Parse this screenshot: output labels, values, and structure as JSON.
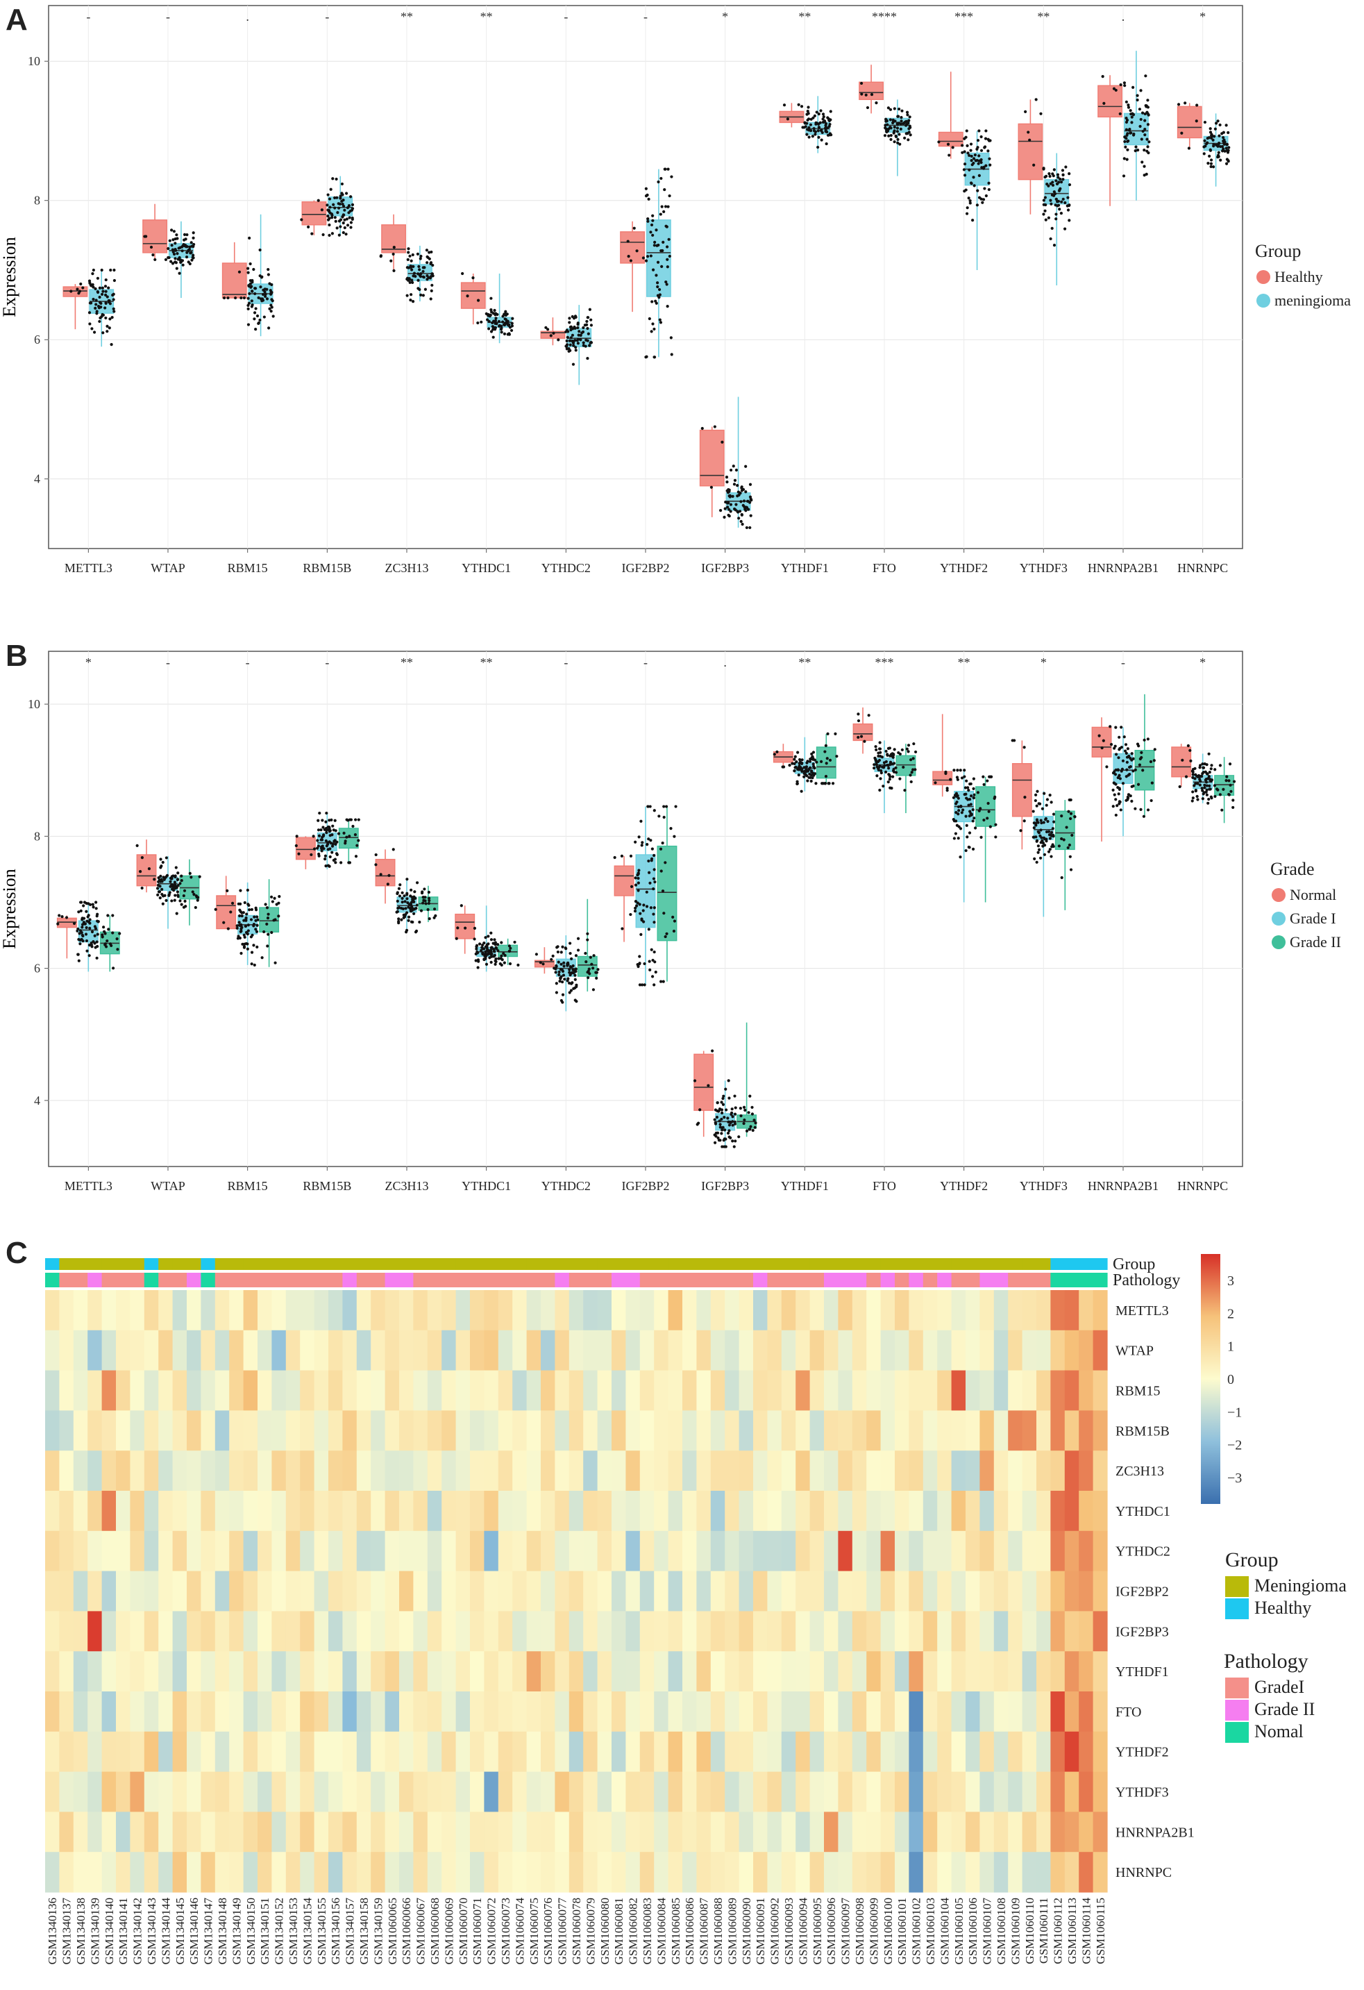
{
  "panels": {
    "a": {
      "letter": "A"
    },
    "b": {
      "letter": "B"
    },
    "c": {
      "letter": "C"
    }
  },
  "genes": [
    "METTL3",
    "WTAP",
    "RBM15",
    "RBM15B",
    "ZC3H13",
    "YTHDC1",
    "YTHDC2",
    "IGF2BP2",
    "IGF2BP3",
    "YTHDF1",
    "FTO",
    "YTHDF2",
    "YTHDF3",
    "HNRNPA2B1",
    "HNRNPC"
  ],
  "chart_data": [
    {
      "type": "box",
      "panel": "A",
      "ylabel": "Expression",
      "ylim": [
        3.0,
        10.8
      ],
      "yticks": [
        4,
        6,
        8,
        10
      ],
      "legend_title": "Group",
      "legend_position": "right",
      "series": [
        {
          "name": "Healthy",
          "color": "#f07c73"
        },
        {
          "name": "meningioma",
          "color": "#6fcfe0"
        }
      ],
      "significance": [
        "-",
        "-",
        ".",
        "-",
        "**",
        "**",
        "-",
        "-",
        "*",
        "**",
        "****",
        "***",
        "**",
        ".",
        "*"
      ],
      "boxes": {
        "Healthy": [
          {
            "q1": 6.62,
            "median": 6.7,
            "q3": 6.76,
            "lo": 6.15,
            "hi": 6.8
          },
          {
            "q1": 7.25,
            "median": 7.38,
            "q3": 7.72,
            "lo": 7.15,
            "hi": 7.95
          },
          {
            "q1": 6.6,
            "median": 6.65,
            "q3": 7.1,
            "lo": 6.6,
            "hi": 7.4
          },
          {
            "q1": 7.65,
            "median": 7.8,
            "q3": 7.98,
            "lo": 7.5,
            "hi": 8.0
          },
          {
            "q1": 7.25,
            "median": 7.3,
            "q3": 7.65,
            "lo": 6.98,
            "hi": 7.8
          },
          {
            "q1": 6.45,
            "median": 6.7,
            "q3": 6.82,
            "lo": 6.22,
            "hi": 6.95
          },
          {
            "q1": 6.02,
            "median": 6.1,
            "q3": 6.12,
            "lo": 5.92,
            "hi": 6.32
          },
          {
            "q1": 7.1,
            "median": 7.4,
            "q3": 7.55,
            "lo": 6.4,
            "hi": 7.7
          },
          {
            "q1": 3.9,
            "median": 4.05,
            "q3": 4.7,
            "lo": 3.45,
            "hi": 4.75
          },
          {
            "q1": 9.12,
            "median": 9.2,
            "q3": 9.28,
            "lo": 9.05,
            "hi": 9.4
          },
          {
            "q1": 9.45,
            "median": 9.55,
            "q3": 9.7,
            "lo": 9.25,
            "hi": 9.95
          },
          {
            "q1": 8.78,
            "median": 8.85,
            "q3": 8.98,
            "lo": 8.6,
            "hi": 9.85
          },
          {
            "q1": 8.3,
            "median": 8.85,
            "q3": 9.1,
            "lo": 7.8,
            "hi": 9.45
          },
          {
            "q1": 9.2,
            "median": 9.35,
            "q3": 9.65,
            "lo": 7.92,
            "hi": 9.8
          },
          {
            "q1": 8.9,
            "median": 9.05,
            "q3": 9.35,
            "lo": 8.75,
            "hi": 9.4
          }
        ],
        "meningioma": [
          {
            "q1": 6.38,
            "median": 6.55,
            "q3": 6.72,
            "lo": 5.9,
            "hi": 7.0
          },
          {
            "q1": 7.18,
            "median": 7.28,
            "q3": 7.38,
            "lo": 6.6,
            "hi": 7.7
          },
          {
            "q1": 6.52,
            "median": 6.66,
            "q3": 6.8,
            "lo": 6.05,
            "hi": 7.8
          },
          {
            "q1": 7.78,
            "median": 7.9,
            "q3": 8.05,
            "lo": 7.5,
            "hi": 8.35
          },
          {
            "q1": 6.85,
            "median": 6.95,
            "q3": 7.08,
            "lo": 6.55,
            "hi": 7.35
          },
          {
            "q1": 6.18,
            "median": 6.25,
            "q3": 6.32,
            "lo": 5.95,
            "hi": 6.95
          },
          {
            "q1": 5.9,
            "median": 6.02,
            "q3": 6.16,
            "lo": 5.35,
            "hi": 6.5
          },
          {
            "q1": 6.62,
            "median": 7.25,
            "q3": 7.72,
            "lo": 5.75,
            "hi": 8.45
          },
          {
            "q1": 3.55,
            "median": 3.68,
            "q3": 3.8,
            "lo": 3.3,
            "hi": 5.18
          },
          {
            "q1": 8.95,
            "median": 9.03,
            "q3": 9.12,
            "lo": 8.68,
            "hi": 9.5
          },
          {
            "q1": 8.98,
            "median": 9.08,
            "q3": 9.18,
            "lo": 8.35,
            "hi": 9.45
          },
          {
            "q1": 8.22,
            "median": 8.45,
            "q3": 8.68,
            "lo": 7.0,
            "hi": 9.0
          },
          {
            "q1": 7.95,
            "median": 8.1,
            "q3": 8.3,
            "lo": 6.78,
            "hi": 8.68
          },
          {
            "q1": 8.8,
            "median": 9.0,
            "q3": 9.25,
            "lo": 8.0,
            "hi": 10.15
          },
          {
            "q1": 8.72,
            "median": 8.82,
            "q3": 8.92,
            "lo": 8.2,
            "hi": 9.25
          }
        ]
      }
    },
    {
      "type": "box",
      "panel": "B",
      "ylabel": "Expression",
      "ylim": [
        3.0,
        10.8
      ],
      "yticks": [
        4,
        6,
        8,
        10
      ],
      "legend_title": "Grade",
      "legend_position": "right",
      "series": [
        {
          "name": "Normal",
          "color": "#f07c73"
        },
        {
          "name": "Grade I",
          "color": "#6fcfe0"
        },
        {
          "name": "Grade II",
          "color": "#3fbf9a"
        }
      ],
      "significance": [
        "*",
        "-",
        "-",
        "-",
        "**",
        "**",
        "-",
        "-",
        ".",
        "**",
        "***",
        "**",
        "*",
        "-",
        "*"
      ],
      "boxes": {
        "Normal": [
          {
            "q1": 6.62,
            "median": 6.7,
            "q3": 6.76,
            "lo": 6.15,
            "hi": 6.8
          },
          {
            "q1": 7.25,
            "median": 7.4,
            "q3": 7.72,
            "lo": 7.15,
            "hi": 7.95
          },
          {
            "q1": 6.6,
            "median": 6.95,
            "q3": 7.1,
            "lo": 6.6,
            "hi": 7.4
          },
          {
            "q1": 7.65,
            "median": 7.8,
            "q3": 7.98,
            "lo": 7.5,
            "hi": 8.0
          },
          {
            "q1": 7.25,
            "median": 7.4,
            "q3": 7.65,
            "lo": 6.98,
            "hi": 7.8
          },
          {
            "q1": 6.45,
            "median": 6.7,
            "q3": 6.82,
            "lo": 6.22,
            "hi": 6.95
          },
          {
            "q1": 6.02,
            "median": 6.1,
            "q3": 6.12,
            "lo": 5.92,
            "hi": 6.32
          },
          {
            "q1": 7.1,
            "median": 7.4,
            "q3": 7.55,
            "lo": 6.4,
            "hi": 7.7
          },
          {
            "q1": 3.85,
            "median": 4.2,
            "q3": 4.7,
            "lo": 3.45,
            "hi": 4.75
          },
          {
            "q1": 9.12,
            "median": 9.2,
            "q3": 9.28,
            "lo": 9.05,
            "hi": 9.4
          },
          {
            "q1": 9.45,
            "median": 9.55,
            "q3": 9.7,
            "lo": 9.25,
            "hi": 9.95
          },
          {
            "q1": 8.78,
            "median": 8.85,
            "q3": 8.98,
            "lo": 8.6,
            "hi": 9.85
          },
          {
            "q1": 8.3,
            "median": 8.85,
            "q3": 9.1,
            "lo": 7.8,
            "hi": 9.45
          },
          {
            "q1": 9.2,
            "median": 9.35,
            "q3": 9.65,
            "lo": 7.92,
            "hi": 9.8
          },
          {
            "q1": 8.9,
            "median": 9.05,
            "q3": 9.35,
            "lo": 8.75,
            "hi": 9.4
          }
        ],
        "Grade I": [
          {
            "q1": 6.4,
            "median": 6.58,
            "q3": 6.72,
            "lo": 5.95,
            "hi": 7.0
          },
          {
            "q1": 7.18,
            "median": 7.28,
            "q3": 7.38,
            "lo": 6.6,
            "hi": 7.7
          },
          {
            "q1": 6.52,
            "median": 6.66,
            "q3": 6.8,
            "lo": 6.05,
            "hi": 7.3
          },
          {
            "q1": 7.78,
            "median": 7.9,
            "q3": 8.05,
            "lo": 7.5,
            "hi": 8.35
          },
          {
            "q1": 6.85,
            "median": 6.95,
            "q3": 7.08,
            "lo": 6.55,
            "hi": 7.35
          },
          {
            "q1": 6.18,
            "median": 6.25,
            "q3": 6.32,
            "lo": 5.95,
            "hi": 6.95
          },
          {
            "q1": 5.88,
            "median": 6.0,
            "q3": 6.14,
            "lo": 5.35,
            "hi": 6.5
          },
          {
            "q1": 6.62,
            "median": 7.2,
            "q3": 7.72,
            "lo": 5.75,
            "hi": 8.45
          },
          {
            "q1": 3.55,
            "median": 3.68,
            "q3": 3.8,
            "lo": 3.3,
            "hi": 4.3
          },
          {
            "q1": 8.95,
            "median": 9.03,
            "q3": 9.12,
            "lo": 8.68,
            "hi": 9.5
          },
          {
            "q1": 8.98,
            "median": 9.08,
            "q3": 9.18,
            "lo": 8.35,
            "hi": 9.45
          },
          {
            "q1": 8.22,
            "median": 8.45,
            "q3": 8.68,
            "lo": 7.0,
            "hi": 9.0
          },
          {
            "q1": 7.95,
            "median": 8.1,
            "q3": 8.3,
            "lo": 6.78,
            "hi": 8.68
          },
          {
            "q1": 8.8,
            "median": 9.0,
            "q3": 9.25,
            "lo": 8.0,
            "hi": 9.65
          },
          {
            "q1": 8.72,
            "median": 8.82,
            "q3": 8.92,
            "lo": 8.5,
            "hi": 9.25
          }
        ],
        "Grade II": [
          {
            "q1": 6.22,
            "median": 6.38,
            "q3": 6.55,
            "lo": 5.95,
            "hi": 6.8
          },
          {
            "q1": 7.05,
            "median": 7.22,
            "q3": 7.4,
            "lo": 6.65,
            "hi": 7.65
          },
          {
            "q1": 6.55,
            "median": 6.72,
            "q3": 6.92,
            "lo": 6.02,
            "hi": 7.35
          },
          {
            "q1": 7.82,
            "median": 7.98,
            "q3": 8.12,
            "lo": 7.6,
            "hi": 8.25
          },
          {
            "q1": 6.88,
            "median": 6.98,
            "q3": 7.08,
            "lo": 6.7,
            "hi": 7.25
          },
          {
            "q1": 6.18,
            "median": 6.25,
            "q3": 6.35,
            "lo": 6.05,
            "hi": 6.45
          },
          {
            "q1": 5.88,
            "median": 6.05,
            "q3": 6.18,
            "lo": 5.65,
            "hi": 7.05
          },
          {
            "q1": 6.42,
            "median": 7.15,
            "q3": 7.85,
            "lo": 5.8,
            "hi": 8.45
          },
          {
            "q1": 3.58,
            "median": 3.68,
            "q3": 3.78,
            "lo": 3.45,
            "hi": 5.18
          },
          {
            "q1": 8.88,
            "median": 9.05,
            "q3": 9.35,
            "lo": 8.8,
            "hi": 9.55
          },
          {
            "q1": 8.92,
            "median": 9.08,
            "q3": 9.22,
            "lo": 8.35,
            "hi": 9.4
          },
          {
            "q1": 8.15,
            "median": 8.4,
            "q3": 8.75,
            "lo": 7.0,
            "hi": 8.9
          },
          {
            "q1": 7.8,
            "median": 8.05,
            "q3": 8.38,
            "lo": 6.88,
            "hi": 8.55
          },
          {
            "q1": 8.7,
            "median": 9.05,
            "q3": 9.3,
            "lo": 8.3,
            "hi": 10.15
          },
          {
            "q1": 8.62,
            "median": 8.78,
            "q3": 8.92,
            "lo": 8.2,
            "hi": 9.2
          }
        ]
      }
    },
    {
      "type": "heatmap",
      "panel": "C",
      "rows": [
        "METTL3",
        "WTAP",
        "RBM15",
        "RBM15B",
        "ZC3H13",
        "YTHDC1",
        "YTHDC2",
        "IGF2BP2",
        "IGF2BP3",
        "YTHDF1",
        "FTO",
        "YTHDF2",
        "YTHDF3",
        "HNRNPA2B1",
        "HNRNPC"
      ],
      "columns": [
        "GSM1340136",
        "GSM1340137",
        "GSM1340138",
        "GSM1340139",
        "GSM1340140",
        "GSM1340141",
        "GSM1340142",
        "GSM1340143",
        "GSM1340144",
        "GSM1340145",
        "GSM1340146",
        "GSM1340147",
        "GSM1340148",
        "GSM1340149",
        "GSM1340150",
        "GSM1340151",
        "GSM1340152",
        "GSM1340153",
        "GSM1340154",
        "GSM1340155",
        "GSM1340156",
        "GSM1340157",
        "GSM1340158",
        "GSM1340159",
        "GSM1060065",
        "GSM1060066",
        "GSM1060067",
        "GSM1060068",
        "GSM1060069",
        "GSM1060070",
        "GSM1060071",
        "GSM1060072",
        "GSM1060073",
        "GSM1060074",
        "GSM1060075",
        "GSM1060076",
        "GSM1060077",
        "GSM1060078",
        "GSM1060079",
        "GSM1060080",
        "GSM1060081",
        "GSM1060082",
        "GSM1060083",
        "GSM1060084",
        "GSM1060085",
        "GSM1060086",
        "GSM1060087",
        "GSM1060088",
        "GSM1060089",
        "GSM1060090",
        "GSM1060091",
        "GSM1060092",
        "GSM1060093",
        "GSM1060094",
        "GSM1060095",
        "GSM1060096",
        "GSM1060097",
        "GSM1060098",
        "GSM1060099",
        "GSM1060100",
        "GSM1060101",
        "GSM1060102",
        "GSM1060103",
        "GSM1060104",
        "GSM1060105",
        "GSM1060106",
        "GSM1060107",
        "GSM1060108",
        "GSM1060109",
        "GSM1060110",
        "GSM1060111",
        "GSM1060112",
        "GSM1060113",
        "GSM1060114",
        "GSM1060115"
      ],
      "scale": {
        "min": -3.8,
        "max": 3.8,
        "ticks": [
          3,
          2,
          1,
          0,
          -1,
          -2,
          -3
        ],
        "colors": [
          "#3a6fae",
          "#8fc0dc",
          "#fdfbce",
          "#f6c27a",
          "#d73027"
        ]
      },
      "annotation_rows": [
        "Group",
        "Pathology"
      ],
      "group_legend": {
        "title": "Group",
        "items": [
          {
            "name": "Meningioma",
            "color": "#b9ba0a"
          },
          {
            "name": "Healthy",
            "color": "#1ec8f0"
          }
        ]
      },
      "pathology_legend": {
        "title": "Pathology",
        "items": [
          {
            "name": "GradeI",
            "color": "#f4908a"
          },
          {
            "name": "Grade II",
            "color": "#f57ef0"
          },
          {
            "name": "Nomal",
            "color": "#1ad7a1"
          }
        ]
      },
      "annotation_group": [
        "H",
        "M",
        "M",
        "M",
        "M",
        "M",
        "M",
        "H",
        "M",
        "M",
        "M",
        "H",
        "M",
        "M",
        "M",
        "M",
        "M",
        "M",
        "M",
        "M",
        "M",
        "M",
        "M",
        "M",
        "M",
        "M",
        "M",
        "M",
        "M",
        "M",
        "M",
        "M",
        "M",
        "M",
        "M",
        "M",
        "M",
        "M",
        "M",
        "M",
        "M",
        "M",
        "M",
        "M",
        "M",
        "M",
        "M",
        "M",
        "M",
        "M",
        "M",
        "M",
        "M",
        "M",
        "M",
        "M",
        "M",
        "M",
        "M",
        "M",
        "M",
        "M",
        "M",
        "M",
        "M",
        "M",
        "M",
        "M",
        "M",
        "M",
        "M",
        "H",
        "H",
        "H",
        "H"
      ],
      "annotation_pathology": [
        "N",
        "G1",
        "G1",
        "G2",
        "G1",
        "G1",
        "G1",
        "N",
        "G1",
        "G1",
        "G2",
        "N",
        "G1",
        "G1",
        "G1",
        "G1",
        "G1",
        "G1",
        "G1",
        "G1",
        "G1",
        "G2",
        "G1",
        "G1",
        "G2",
        "G2",
        "G1",
        "G1",
        "G1",
        "G1",
        "G1",
        "G1",
        "G1",
        "G1",
        "G1",
        "G1",
        "G2",
        "G1",
        "G1",
        "G1",
        "G2",
        "G2",
        "G1",
        "G1",
        "G1",
        "G1",
        "G1",
        "G1",
        "G1",
        "G1",
        "G2",
        "G1",
        "G1",
        "G1",
        "G1",
        "G2",
        "G2",
        "G2",
        "G1",
        "G2",
        "G1",
        "G2",
        "G1",
        "G2",
        "G1",
        "G1",
        "G2",
        "G2",
        "G1",
        "G1",
        "G1",
        "N",
        "N",
        "N",
        "N"
      ]
    }
  ]
}
